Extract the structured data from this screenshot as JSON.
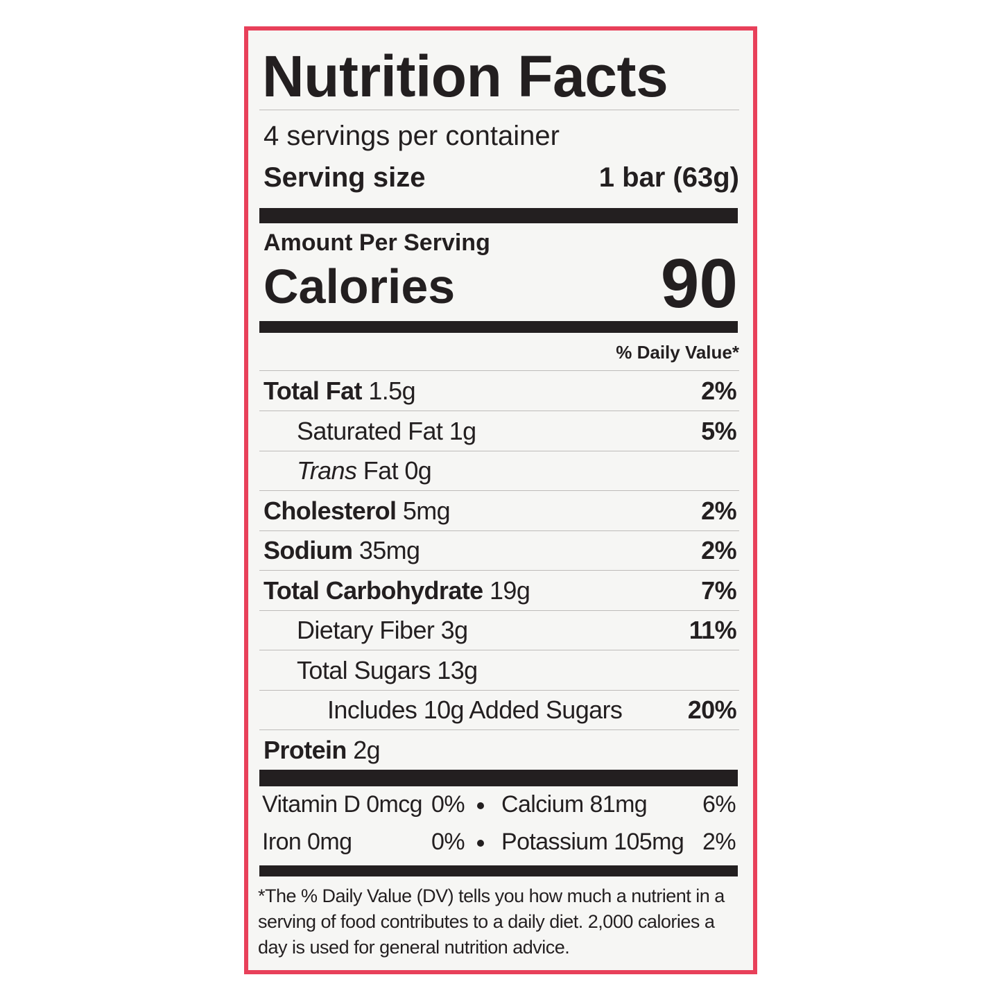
{
  "title": "Nutrition Facts",
  "servings": "4 servings per container",
  "serving_size": {
    "label": "Serving size",
    "value": "1 bar (63g)"
  },
  "amount_per_serving": "Amount Per Serving",
  "calories": {
    "label": "Calories",
    "value": "90"
  },
  "dv_header": "% Daily Value*",
  "nutrients": [
    {
      "name": "Total Fat",
      "amount": "1.5g",
      "dv": "2%"
    },
    {
      "name": "Saturated Fat 1g",
      "dv": "5%"
    },
    {
      "name_italic": "Trans",
      "name": "Fat 0g"
    },
    {
      "name": "Cholesterol",
      "amount": "5mg",
      "dv": "2%"
    },
    {
      "name": "Sodium",
      "amount": "35mg",
      "dv": "2%"
    },
    {
      "name": "Total Carbohydrate",
      "amount": "19g",
      "dv": "7%"
    },
    {
      "name": "Dietary Fiber 3g",
      "dv": "11%"
    },
    {
      "name": "Total Sugars 13g"
    },
    {
      "name": "Includes 10g Added Sugars",
      "dv": "20%"
    },
    {
      "name": "Protein",
      "amount": "2g"
    }
  ],
  "vitamins": [
    [
      {
        "name": "Vitamin D 0mcg",
        "dv": "0%"
      },
      {
        "name": "Calcium 81mg",
        "dv": "6%"
      }
    ],
    [
      {
        "name": "Iron 0mg",
        "dv": "0%"
      },
      {
        "name": "Potassium 105mg",
        "dv": "2%"
      }
    ]
  ],
  "footnote": "*The % Daily Value (DV) tells you how much a nutrient in a serving of food contributes to a daily diet. 2,000 calories a day is used for general nutrition advice."
}
